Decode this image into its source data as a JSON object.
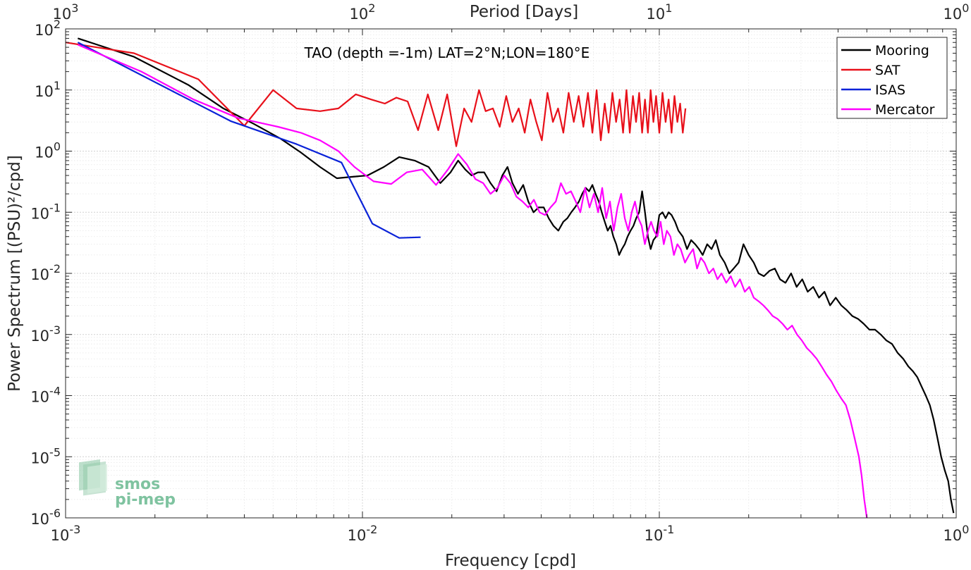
{
  "chart_data": {
    "type": "line",
    "title": "TAO (depth =-1m) LAT=2°N;LON=180°E",
    "xlabel": "Frequency [cpd]",
    "ylabel": "Power Spectrum [(PSU)²/cpd]",
    "top_xlabel": "Period [Days]",
    "xscale": "log",
    "yscale": "log",
    "xlim": [
      0.001,
      1
    ],
    "ylim": [
      1e-06,
      100
    ],
    "grid": true,
    "legend_position": "top-right",
    "x_tick_labels": [
      "10^-3",
      "10^-2",
      "10^-1",
      "10^0"
    ],
    "y_tick_labels": [
      "10^-6",
      "10^-5",
      "10^-4",
      "10^-3",
      "10^-2",
      "10^-1",
      "10^0",
      "10^1",
      "10^2"
    ],
    "top_tick_labels": [
      "10^3",
      "10^2",
      "10^1",
      "10^0"
    ],
    "series": [
      {
        "name": "Mooring",
        "color": "#000000",
        "x": [
          0.0011,
          0.0017,
          0.0026,
          0.0034,
          0.0043,
          0.0053,
          0.0062,
          0.0072,
          0.0082,
          0.0092,
          0.0104,
          0.0118,
          0.0133,
          0.015,
          0.0167,
          0.0183,
          0.0198,
          0.021,
          0.0222,
          0.0233,
          0.0245,
          0.0257,
          0.027,
          0.0283,
          0.0296,
          0.0308,
          0.032,
          0.0334,
          0.0348,
          0.0362,
          0.0377,
          0.0392,
          0.0408,
          0.0424,
          0.044,
          0.0457,
          0.0475,
          0.049,
          0.0505,
          0.052,
          0.0536,
          0.055,
          0.0565,
          0.058,
          0.0595,
          0.061,
          0.0625,
          0.064,
          0.0655,
          0.067,
          0.0685,
          0.07,
          0.0716,
          0.0732,
          0.0748,
          0.0765,
          0.0782,
          0.08,
          0.0818,
          0.0836,
          0.0855,
          0.0875,
          0.0895,
          0.0915,
          0.0935,
          0.0955,
          0.0975,
          0.1,
          0.1025,
          0.105,
          0.1075,
          0.11,
          0.113,
          0.116,
          0.12,
          0.124,
          0.128,
          0.132,
          0.136,
          0.14,
          0.145,
          0.15,
          0.155,
          0.16,
          0.166,
          0.172,
          0.178,
          0.185,
          0.192,
          0.2,
          0.208,
          0.216,
          0.225,
          0.235,
          0.245,
          0.255,
          0.266,
          0.278,
          0.29,
          0.303,
          0.316,
          0.33,
          0.345,
          0.36,
          0.376,
          0.393,
          0.41,
          0.428,
          0.447,
          0.467,
          0.488,
          0.51,
          0.533,
          0.557,
          0.582,
          0.608,
          0.635,
          0.663,
          0.69,
          0.715,
          0.74,
          0.765,
          0.79,
          0.815,
          0.84,
          0.865,
          0.89,
          0.915,
          0.94,
          0.96,
          0.98
        ],
        "y": [
          70,
          35,
          12,
          5,
          2.8,
          1.6,
          0.95,
          0.55,
          0.36,
          0.38,
          0.4,
          0.55,
          0.8,
          0.7,
          0.55,
          0.3,
          0.45,
          0.7,
          0.5,
          0.4,
          0.45,
          0.45,
          0.3,
          0.22,
          0.4,
          0.55,
          0.3,
          0.2,
          0.28,
          0.15,
          0.1,
          0.12,
          0.12,
          0.08,
          0.06,
          0.05,
          0.07,
          0.08,
          0.1,
          0.12,
          0.15,
          0.2,
          0.25,
          0.22,
          0.28,
          0.2,
          0.15,
          0.1,
          0.07,
          0.05,
          0.06,
          0.04,
          0.03,
          0.02,
          0.025,
          0.03,
          0.04,
          0.05,
          0.06,
          0.08,
          0.1,
          0.22,
          0.1,
          0.04,
          0.025,
          0.035,
          0.04,
          0.09,
          0.1,
          0.08,
          0.1,
          0.09,
          0.07,
          0.05,
          0.04,
          0.025,
          0.035,
          0.03,
          0.025,
          0.02,
          0.03,
          0.025,
          0.035,
          0.02,
          0.015,
          0.01,
          0.012,
          0.015,
          0.03,
          0.02,
          0.015,
          0.01,
          0.009,
          0.011,
          0.012,
          0.008,
          0.007,
          0.01,
          0.006,
          0.008,
          0.005,
          0.006,
          0.004,
          0.005,
          0.003,
          0.004,
          0.003,
          0.0025,
          0.002,
          0.0018,
          0.0015,
          0.0012,
          0.0012,
          0.001,
          0.0008,
          0.0007,
          0.0005,
          0.0004,
          0.0003,
          0.00025,
          0.0002,
          0.00014,
          0.0001,
          7e-05,
          4e-05,
          2e-05,
          1e-05,
          6e-06,
          4e-06,
          2e-06,
          1.2e-06
        ]
      },
      {
        "name": "SAT",
        "color": "#e8101a",
        "x": [
          0.001,
          0.0017,
          0.0028,
          0.004,
          0.005,
          0.006,
          0.0072,
          0.0083,
          0.0095,
          0.0107,
          0.0119,
          0.013,
          0.0142,
          0.0154,
          0.0166,
          0.018,
          0.0193,
          0.0207,
          0.022,
          0.0233,
          0.0247,
          0.026,
          0.0275,
          0.029,
          0.0305,
          0.032,
          0.0336,
          0.0352,
          0.0368,
          0.0385,
          0.0402,
          0.042,
          0.0438,
          0.0456,
          0.0475,
          0.0495,
          0.0515,
          0.0535,
          0.0555,
          0.0575,
          0.0595,
          0.0615,
          0.0635,
          0.0655,
          0.0675,
          0.0695,
          0.0715,
          0.0735,
          0.0755,
          0.0775,
          0.0795,
          0.0815,
          0.0835,
          0.0855,
          0.0875,
          0.0895,
          0.0915,
          0.0935,
          0.0955,
          0.0975,
          0.1,
          0.1025,
          0.105,
          0.1075,
          0.11,
          0.1125,
          0.115,
          0.1175,
          0.12,
          0.1225
        ],
        "y": [
          60,
          40,
          15,
          2.6,
          10,
          5,
          4.5,
          5,
          8.5,
          7,
          6,
          7.5,
          6.5,
          2.2,
          8.5,
          2.2,
          8.5,
          1.2,
          5,
          3,
          10,
          4.5,
          5,
          2.5,
          8,
          3,
          5,
          2,
          7,
          3,
          1.5,
          9,
          3,
          5,
          2,
          9,
          3,
          8,
          2.5,
          9,
          2,
          10,
          1.5,
          6,
          2,
          9,
          3,
          7,
          2,
          10,
          2,
          8,
          3,
          9,
          2,
          7,
          2,
          10,
          3,
          8,
          2,
          9,
          3,
          7,
          2,
          8,
          3,
          6,
          2,
          5
        ]
      },
      {
        "name": "ISAS",
        "color": "#0a22d8",
        "x": [
          0.0011,
          0.0036,
          0.006,
          0.0085,
          0.0108,
          0.0133,
          0.0157
        ],
        "y": [
          60,
          3.1,
          1.3,
          0.65,
          0.065,
          0.038,
          0.039
        ]
      },
      {
        "name": "Mercator",
        "color": "#ff00ff",
        "x": [
          0.0011,
          0.0018,
          0.0027,
          0.0038,
          0.0052,
          0.0062,
          0.0072,
          0.0083,
          0.0094,
          0.0109,
          0.0125,
          0.0141,
          0.0159,
          0.0177,
          0.0194,
          0.021,
          0.0225,
          0.024,
          0.0255,
          0.027,
          0.0285,
          0.03,
          0.0315,
          0.033,
          0.0346,
          0.0362,
          0.0378,
          0.0395,
          0.0412,
          0.043,
          0.0448,
          0.0466,
          0.0485,
          0.0504,
          0.0523,
          0.0542,
          0.0562,
          0.0582,
          0.0602,
          0.0622,
          0.0642,
          0.0662,
          0.0682,
          0.0702,
          0.0723,
          0.0744,
          0.0765,
          0.0786,
          0.0807,
          0.0828,
          0.085,
          0.0872,
          0.0894,
          0.0916,
          0.0938,
          0.096,
          0.0985,
          0.101,
          0.1035,
          0.106,
          0.109,
          0.112,
          0.115,
          0.118,
          0.122,
          0.126,
          0.13,
          0.134,
          0.138,
          0.142,
          0.147,
          0.152,
          0.157,
          0.162,
          0.168,
          0.174,
          0.18,
          0.187,
          0.194,
          0.201,
          0.208,
          0.216,
          0.224,
          0.232,
          0.241,
          0.25,
          0.26,
          0.27,
          0.28,
          0.291,
          0.302,
          0.314,
          0.326,
          0.339,
          0.352,
          0.366,
          0.38,
          0.395,
          0.41,
          0.425,
          0.44,
          0.455,
          0.47,
          0.48,
          0.49,
          0.5
        ],
        "y": [
          55,
          20,
          7,
          3.5,
          2.5,
          2,
          1.5,
          1,
          0.55,
          0.32,
          0.29,
          0.45,
          0.5,
          0.28,
          0.5,
          0.9,
          0.6,
          0.35,
          0.3,
          0.2,
          0.25,
          0.4,
          0.3,
          0.18,
          0.15,
          0.12,
          0.16,
          0.1,
          0.09,
          0.12,
          0.15,
          0.3,
          0.2,
          0.22,
          0.15,
          0.1,
          0.25,
          0.12,
          0.2,
          0.1,
          0.25,
          0.08,
          0.15,
          0.05,
          0.12,
          0.2,
          0.08,
          0.05,
          0.1,
          0.15,
          0.08,
          0.06,
          0.03,
          0.05,
          0.07,
          0.05,
          0.04,
          0.07,
          0.03,
          0.05,
          0.04,
          0.02,
          0.03,
          0.025,
          0.015,
          0.02,
          0.025,
          0.012,
          0.018,
          0.015,
          0.01,
          0.012,
          0.008,
          0.01,
          0.007,
          0.009,
          0.006,
          0.008,
          0.005,
          0.006,
          0.004,
          0.0035,
          0.003,
          0.0025,
          0.002,
          0.0018,
          0.0015,
          0.0012,
          0.0014,
          0.001,
          0.0008,
          0.0006,
          0.0005,
          0.0004,
          0.0003,
          0.00022,
          0.00017,
          0.00012,
          9e-05,
          7e-05,
          4e-05,
          2e-05,
          1e-05,
          5e-06,
          2e-06,
          1e-06
        ]
      }
    ]
  },
  "logo": {
    "line1": "smos",
    "line2": "pi-mep"
  }
}
